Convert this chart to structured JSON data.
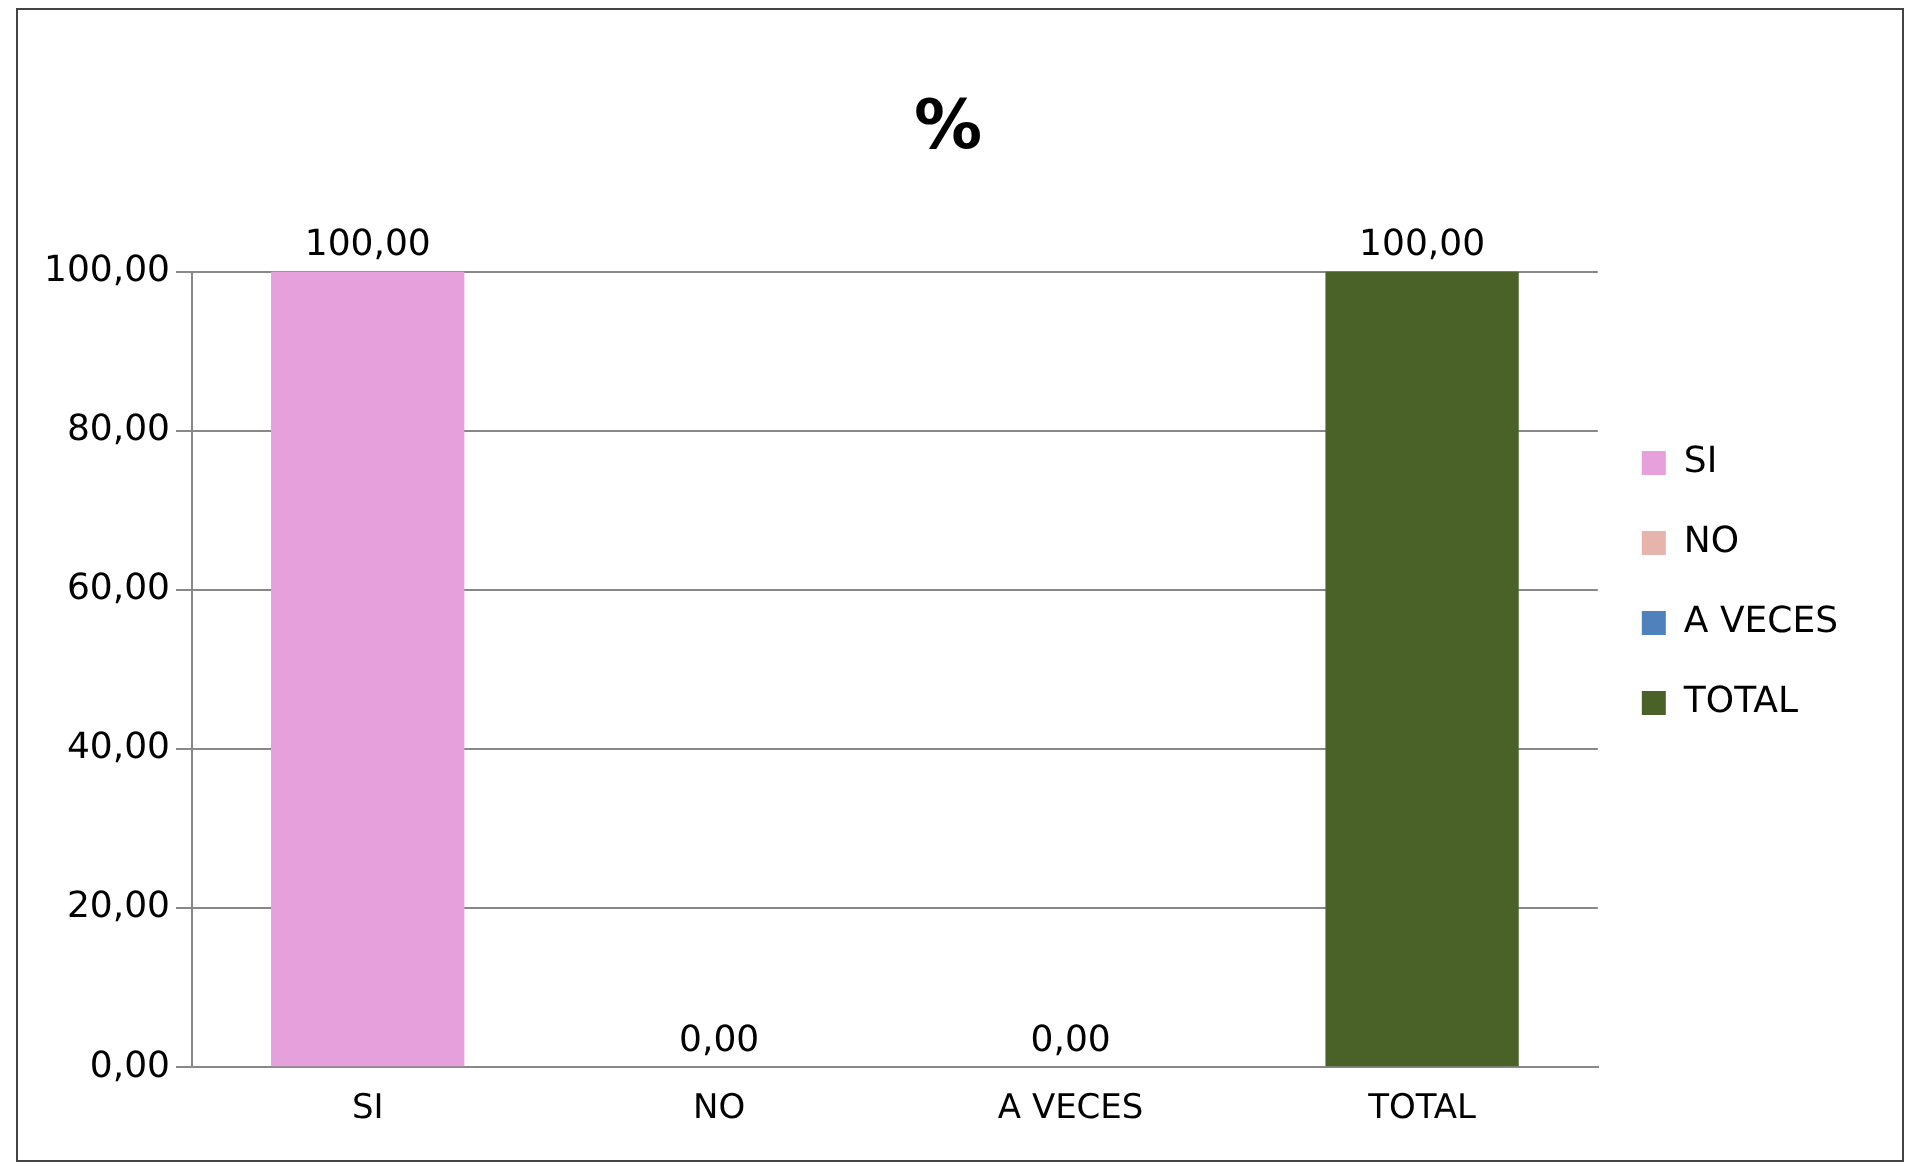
{
  "chart_data": {
    "type": "bar",
    "title": "%",
    "categories": [
      "SI",
      "NO",
      "A VECES",
      "TOTAL"
    ],
    "series": [
      {
        "name": "SI",
        "color": "#e6a0dc",
        "values": [
          100,
          null,
          null,
          null
        ],
        "value_labels": [
          "100,00",
          null,
          null,
          null
        ]
      },
      {
        "name": "NO",
        "color": "#e6b4ac",
        "values": [
          null,
          0,
          null,
          null
        ],
        "value_labels": [
          null,
          "0,00",
          null,
          null
        ]
      },
      {
        "name": "A VECES",
        "color": "#4f81bd",
        "values": [
          null,
          null,
          0,
          null
        ],
        "value_labels": [
          null,
          null,
          "0,00",
          null
        ]
      },
      {
        "name": "TOTAL",
        "color": "#4a6228",
        "values": [
          null,
          null,
          null,
          100
        ],
        "value_labels": [
          null,
          null,
          null,
          "100,00"
        ]
      }
    ],
    "ylim": [
      0,
      100
    ],
    "yticks": [
      {
        "value": 0,
        "label": "0,00"
      },
      {
        "value": 20,
        "label": "20,00"
      },
      {
        "value": 40,
        "label": "40,00"
      },
      {
        "value": 60,
        "label": "60,00"
      },
      {
        "value": 80,
        "label": "80,00"
      },
      {
        "value": 100,
        "label": "100,00"
      }
    ],
    "grid": "y",
    "legend": "right"
  }
}
